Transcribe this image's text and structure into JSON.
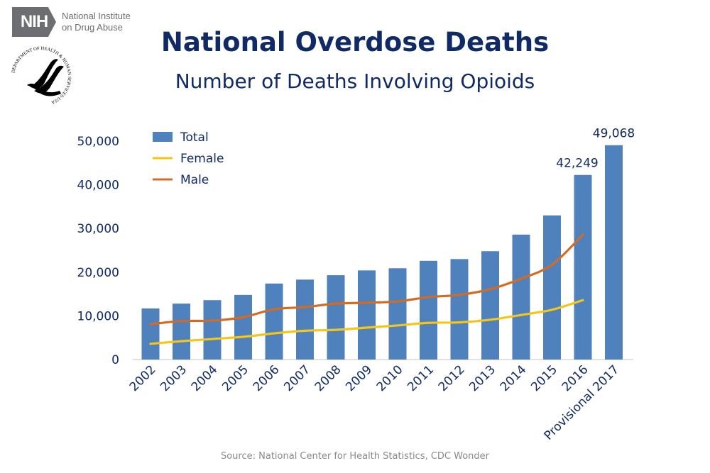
{
  "header": {
    "nih_logo_text": "NIH",
    "nih_institute_line1": "National Institute",
    "nih_institute_line2": "on Drug Abuse",
    "hhs_seal_text": "DEPARTMENT OF HEALTH & HUMAN SERVICES-USA"
  },
  "source": "Source: National Center for Health Statistics, CDC Wonder",
  "chart_data": {
    "type": "bar",
    "title": "National Overdose Deaths",
    "subtitle": "Number of Deaths Involving Opioids",
    "xlabel": "",
    "ylabel": "",
    "ylim": [
      0,
      50000
    ],
    "yticks": [
      "0",
      "10,000",
      "20,000",
      "30,000",
      "40,000",
      "50,000"
    ],
    "ytick_values": [
      0,
      10000,
      20000,
      30000,
      40000,
      50000
    ],
    "categories": [
      "2002",
      "2003",
      "2004",
      "2005",
      "2006",
      "2007",
      "2008",
      "2009",
      "2010",
      "2011",
      "2012",
      "2013",
      "2014",
      "2015",
      "2016",
      "Provisional 2017"
    ],
    "legend_position": "top-left",
    "grid": false,
    "series": [
      {
        "name": "Total",
        "type": "bar",
        "color": "#4f81bd",
        "values": [
          11700,
          12800,
          13600,
          14800,
          17400,
          18300,
          19300,
          20400,
          20900,
          22600,
          23000,
          24800,
          28600,
          33000,
          42249,
          49068
        ]
      },
      {
        "name": "Female",
        "type": "line",
        "color": "#f5c518",
        "values": [
          3600,
          4200,
          4700,
          5200,
          6000,
          6600,
          6800,
          7300,
          7800,
          8400,
          8500,
          9100,
          10200,
          11400,
          13600,
          null
        ]
      },
      {
        "name": "Male",
        "type": "line",
        "color": "#d46b22",
        "values": [
          8100,
          8800,
          8900,
          9700,
          11500,
          12000,
          12800,
          13000,
          13300,
          14300,
          14800,
          16100,
          18500,
          21700,
          28600,
          null
        ]
      }
    ],
    "data_labels": [
      {
        "category": "2016",
        "text": "42,249"
      },
      {
        "category": "Provisional 2017",
        "text": "49,068"
      }
    ]
  }
}
